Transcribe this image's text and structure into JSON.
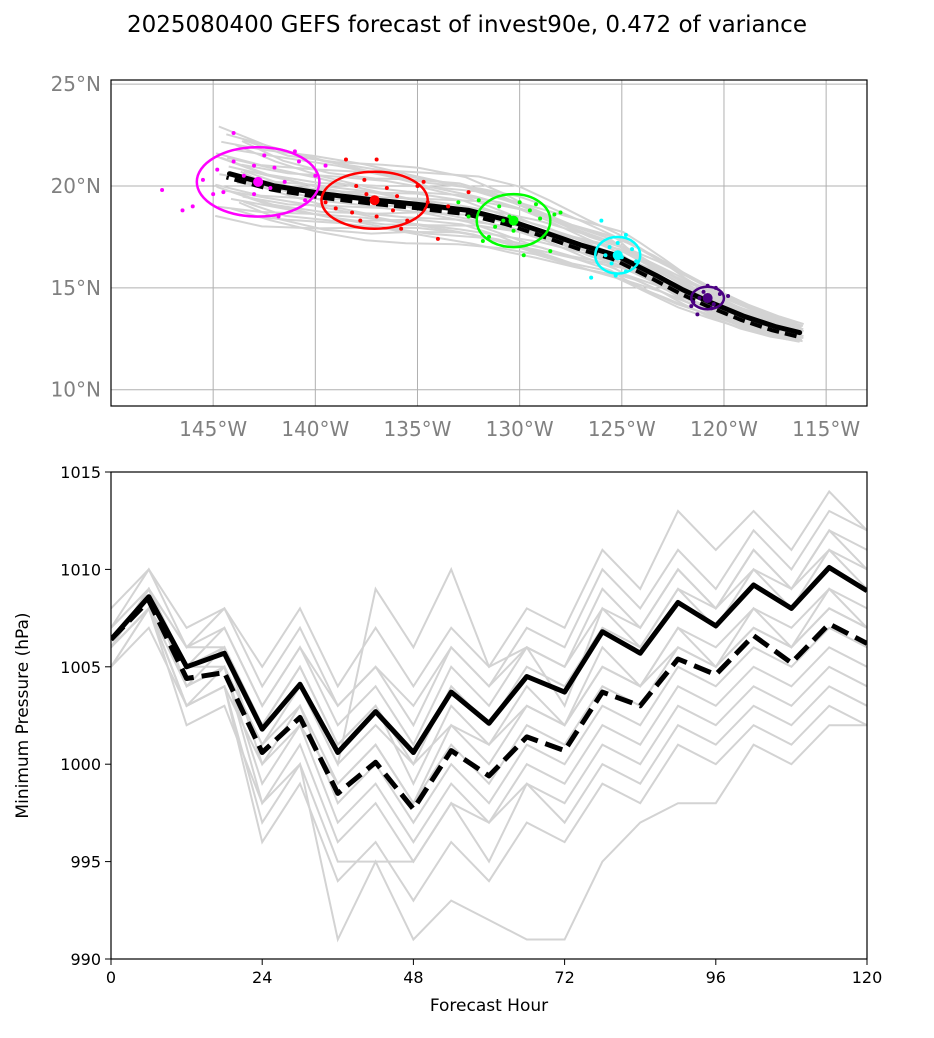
{
  "title": "2025080400 GEFS forecast of invest90e, 0.472 of variance",
  "chart_data": [
    {
      "type": "scatter",
      "subtype": "map-track",
      "xlim": [
        -150,
        -113
      ],
      "ylim": [
        9.2,
        25.2
      ],
      "xticks": [
        -145,
        -140,
        -135,
        -130,
        -125,
        -120,
        -115
      ],
      "xtick_labels": [
        "145°W",
        "140°W",
        "135°W",
        "130°W",
        "125°W",
        "120°W",
        "115°W"
      ],
      "yticks": [
        10,
        15,
        20,
        25
      ],
      "ytick_labels": [
        "10°N",
        "15°N",
        "20°N",
        "25°N"
      ],
      "grid": true,
      "colors": {
        "ensemble": "#d3d3d3",
        "mean": "#000000",
        "grid": "#b0b0b0"
      },
      "mean_track": {
        "lon": [
          -116.3,
          -117.5,
          -119.0,
          -120.7,
          -122.0,
          -123.3,
          -124.5,
          -125.3,
          -127.0,
          -129.0,
          -130.5,
          -132.5,
          -135.0,
          -137.0,
          -139.5,
          -142.0,
          -144.2
        ],
        "lat": [
          12.8,
          13.1,
          13.6,
          14.3,
          14.9,
          15.6,
          16.2,
          16.6,
          17.1,
          17.8,
          18.3,
          18.8,
          19.1,
          19.3,
          19.6,
          20.0,
          20.6
        ]
      },
      "ensemble_track_count": 30,
      "clusters": [
        {
          "color": "#ff00ff",
          "center": [
            -142.8,
            20.2
          ],
          "radius_deg": [
            3.0,
            1.7
          ],
          "points": [
            [
              -147.5,
              19.8
            ],
            [
              -146.0,
              19.0
            ],
            [
              -145.5,
              20.3
            ],
            [
              -145.0,
              19.6
            ],
            [
              -144.5,
              19.7
            ],
            [
              -144.0,
              22.6
            ],
            [
              -144.0,
              21.2
            ],
            [
              -143.5,
              20.5
            ],
            [
              -143.0,
              21.0
            ],
            [
              -143.0,
              19.6
            ],
            [
              -142.5,
              21.5
            ],
            [
              -142.0,
              20.9
            ],
            [
              -141.8,
              18.5
            ],
            [
              -141.5,
              20.2
            ],
            [
              -141.0,
              21.7
            ],
            [
              -140.8,
              21.2
            ],
            [
              -140.5,
              19.3
            ],
            [
              -140.0,
              20.5
            ],
            [
              -139.5,
              21.0
            ],
            [
              -146.5,
              18.8
            ],
            [
              -144.8,
              20.8
            ],
            [
              -142.2,
              19.9
            ]
          ]
        },
        {
          "color": "#ff0000",
          "center": [
            -137.1,
            19.3
          ],
          "radius_deg": [
            2.6,
            1.4
          ],
          "points": [
            [
              -139.5,
              19.2
            ],
            [
              -139.0,
              18.9
            ],
            [
              -138.5,
              21.3
            ],
            [
              -138.0,
              20.0
            ],
            [
              -137.8,
              18.3
            ],
            [
              -137.5,
              19.6
            ],
            [
              -137.0,
              21.3
            ],
            [
              -137.0,
              18.5
            ],
            [
              -136.5,
              19.9
            ],
            [
              -136.2,
              18.8
            ],
            [
              -136.0,
              19.5
            ],
            [
              -135.5,
              18.3
            ],
            [
              -135.0,
              20.0
            ],
            [
              -134.7,
              20.2
            ],
            [
              -134.5,
              19.2
            ],
            [
              -134.0,
              17.4
            ],
            [
              -133.5,
              19.0
            ],
            [
              -138.2,
              18.7
            ],
            [
              -135.8,
              17.9
            ],
            [
              -137.6,
              20.3
            ],
            [
              -132.5,
              19.7
            ]
          ]
        },
        {
          "color": "#00ff00",
          "center": [
            -130.3,
            18.3
          ],
          "radius_deg": [
            1.8,
            1.3
          ],
          "points": [
            [
              -132.5,
              18.5
            ],
            [
              -132.0,
              19.3
            ],
            [
              -131.5,
              17.5
            ],
            [
              -131.2,
              18.0
            ],
            [
              -131.0,
              19.0
            ],
            [
              -130.5,
              18.5
            ],
            [
              -130.3,
              17.8
            ],
            [
              -130.0,
              19.2
            ],
            [
              -129.8,
              16.6
            ],
            [
              -129.5,
              18.8
            ],
            [
              -129.0,
              18.4
            ],
            [
              -128.5,
              16.8
            ],
            [
              -128.3,
              18.6
            ],
            [
              -128.0,
              18.7
            ],
            [
              -131.8,
              17.3
            ],
            [
              -130.8,
              18.3
            ],
            [
              -129.2,
              19.1
            ],
            [
              -133.0,
              19.2
            ]
          ]
        },
        {
          "color": "#00ffff",
          "center": [
            -125.2,
            16.6
          ],
          "radius_deg": [
            1.1,
            0.9
          ],
          "points": [
            [
              -126.5,
              15.5
            ],
            [
              -126.0,
              18.3
            ],
            [
              -125.8,
              16.6
            ],
            [
              -125.5,
              16.2
            ],
            [
              -125.2,
              17.2
            ],
            [
              -125.0,
              16.5
            ],
            [
              -124.8,
              15.8
            ],
            [
              -124.5,
              16.9
            ],
            [
              -124.3,
              16.3
            ],
            [
              -125.6,
              17.0
            ],
            [
              -124.8,
              17.6
            ],
            [
              -125.3,
              15.6
            ]
          ]
        },
        {
          "color": "#4b0082",
          "center": [
            -120.8,
            14.5
          ],
          "radius_deg": [
            0.8,
            0.55
          ],
          "points": [
            [
              -121.5,
              14.3
            ],
            [
              -121.3,
              13.7
            ],
            [
              -121.0,
              14.8
            ],
            [
              -120.8,
              15.1
            ],
            [
              -120.5,
              14.2
            ],
            [
              -120.2,
              14.7
            ],
            [
              -119.8,
              14.6
            ],
            [
              -121.2,
              14.5
            ],
            [
              -120.6,
              14.0
            ],
            [
              -120.9,
              14.6
            ],
            [
              -121.6,
              14.1
            ],
            [
              -120.4,
              15.0
            ]
          ]
        }
      ]
    },
    {
      "type": "line",
      "xlabel": "Forecast Hour",
      "ylabel": "Minimum Pressure (hPa)",
      "xlim": [
        0,
        120
      ],
      "ylim": [
        990,
        1015
      ],
      "xticks": [
        0,
        24,
        48,
        72,
        96,
        120
      ],
      "yticks": [
        990,
        995,
        1000,
        1005,
        1010,
        1015
      ],
      "x": [
        0,
        6,
        12,
        18,
        24,
        30,
        36,
        42,
        48,
        54,
        60,
        66,
        72,
        78,
        84,
        90,
        96,
        102,
        108,
        114,
        120
      ],
      "series": [
        {
          "style": "solid",
          "color": "#000000",
          "values": [
            1006.4,
            1008.6,
            1005.0,
            1005.7,
            1001.8,
            1004.1,
            1000.6,
            1002.7,
            1000.6,
            1003.7,
            1002.1,
            1004.5,
            1003.7,
            1006.8,
            1005.7,
            1008.3,
            1007.1,
            1009.2,
            1008.0,
            1010.1,
            1008.9
          ]
        },
        {
          "style": "dashed",
          "color": "#000000",
          "values": [
            1006.4,
            1008.4,
            1004.4,
            1004.7,
            1000.6,
            1002.4,
            998.5,
            1000.1,
            997.7,
            1000.7,
            999.4,
            1001.4,
            1000.7,
            1003.7,
            1003.0,
            1005.4,
            1004.6,
            1006.6,
            1005.2,
            1007.2,
            1006.2
          ]
        },
        {
          "style": "ensemble",
          "color": "#d3d3d3",
          "values": [
            1006,
            1009,
            1006,
            1007,
            1003,
            1006,
            1002,
            1004,
            1001,
            1005,
            1003,
            1006,
            1005,
            1009,
            1007,
            1010,
            1008,
            1011,
            1009,
            1012,
            1010
          ]
        },
        {
          "style": "ensemble",
          "color": "#d3d3d3",
          "values": [
            1007,
            1010,
            1007,
            1008,
            1004,
            1007,
            1003,
            1005,
            1002,
            1006,
            1004,
            1007,
            1006,
            1010,
            1008,
            1011,
            1009,
            1012,
            1010,
            1013,
            1012
          ]
        },
        {
          "style": "ensemble",
          "color": "#d3d3d3",
          "values": [
            1008,
            1010,
            1006,
            1008,
            1005,
            1008,
            1004,
            1007,
            1004,
            1007,
            1005,
            1008,
            1007,
            1011,
            1009,
            1013,
            1011,
            1013,
            1011,
            1014,
            1012
          ]
        },
        {
          "style": "ensemble",
          "color": "#d3d3d3",
          "values": [
            1005,
            1008,
            1005,
            1006,
            1002,
            1005,
            1001,
            1003,
            1000,
            1004,
            1002,
            1005,
            1004,
            1007,
            1006,
            1009,
            1007,
            1010,
            1008,
            1011,
            1009
          ]
        },
        {
          "style": "ensemble",
          "color": "#d3d3d3",
          "values": [
            1006,
            1009,
            1004,
            1006,
            1000,
            1003,
            999,
            1001,
            998,
            1002,
            1000,
            1003,
            1002,
            1005,
            1004,
            1007,
            1006,
            1008,
            1007,
            1009,
            1008
          ]
        },
        {
          "style": "ensemble",
          "color": "#d3d3d3",
          "values": [
            1007,
            1009,
            1005,
            1005,
            1001,
            1004,
            1000,
            1009,
            1006,
            1010,
            1005,
            1006,
            1003,
            1008,
            1006,
            1009,
            1008,
            1010,
            1009,
            1011,
            1010
          ]
        },
        {
          "style": "ensemble",
          "color": "#d3d3d3",
          "values": [
            1006,
            1008,
            1004,
            1005,
            1001,
            1003,
            998,
            1000,
            997,
            1000,
            998,
            1001,
            1000,
            1003,
            1002,
            1005,
            1004,
            1006,
            1005,
            1007,
            1006
          ]
        },
        {
          "style": "ensemble",
          "color": "#d3d3d3",
          "values": [
            1006,
            1009,
            1004,
            1005,
            999,
            1002,
            997,
            999,
            996,
            999,
            997,
            1000,
            999,
            1002,
            1001,
            1004,
            1003,
            1005,
            1004,
            1006,
            1005
          ]
        },
        {
          "style": "ensemble",
          "color": "#d3d3d3",
          "values": [
            1006,
            1008,
            1003,
            1005,
            998,
            1001,
            996,
            998,
            995,
            998,
            995,
            999,
            998,
            1001,
            1000,
            1003,
            1002,
            1004,
            1003,
            1005,
            1004
          ]
        },
        {
          "style": "ensemble",
          "color": "#d3d3d3",
          "values": [
            1005,
            1008,
            1003,
            1004,
            997,
            1000,
            995,
            995,
            995,
            998,
            997,
            999,
            997,
            1000,
            999,
            1002,
            1001,
            1003,
            1002,
            1004,
            1003
          ]
        },
        {
          "style": "ensemble",
          "color": "#d3d3d3",
          "values": [
            1006,
            1008,
            1003,
            1004,
            996,
            999,
            994,
            996,
            993,
            996,
            994,
            997,
            996,
            999,
            998,
            1001,
            1000,
            1002,
            1001,
            1003,
            1002
          ]
        },
        {
          "style": "ensemble",
          "color": "#d3d3d3",
          "values": [
            1006,
            1008,
            1002,
            1003,
            998,
            1000,
            991,
            995,
            991,
            993,
            992,
            991,
            991,
            995,
            997,
            998,
            998,
            1001,
            1000,
            1002,
            1002
          ]
        },
        {
          "style": "ensemble",
          "color": "#d3d3d3",
          "values": [
            1005,
            1007,
            1003,
            1004,
            1000,
            1002,
            999,
            1001,
            998,
            1001,
            999,
            1002,
            1001,
            1004,
            1003,
            1006,
            1005,
            1007,
            1006,
            1008,
            1007
          ]
        },
        {
          "style": "ensemble",
          "color": "#d3d3d3",
          "values": [
            1007,
            1009,
            1005,
            1006,
            1002,
            1005,
            1001,
            1003,
            999,
            1003,
            1001,
            1004,
            1002,
            1006,
            1004,
            1007,
            1005,
            1008,
            1006,
            1009,
            1007
          ]
        },
        {
          "style": "ensemble",
          "color": "#d3d3d3",
          "values": [
            1006,
            1008,
            1005,
            1007,
            1003,
            1006,
            1003,
            1005,
            1003,
            1006,
            1004,
            1006,
            1005,
            1008,
            1007,
            1010,
            1008,
            1011,
            1009,
            1012,
            1011
          ]
        },
        {
          "style": "ensemble",
          "color": "#d3d3d3",
          "values": [
            1006,
            1009,
            1006,
            1006,
            1002,
            1004,
            1000,
            1002,
            1000,
            1002,
            1001,
            1003,
            1002,
            1005,
            1004,
            1006,
            1005,
            1007,
            1006,
            1008,
            1007
          ]
        }
      ]
    }
  ]
}
